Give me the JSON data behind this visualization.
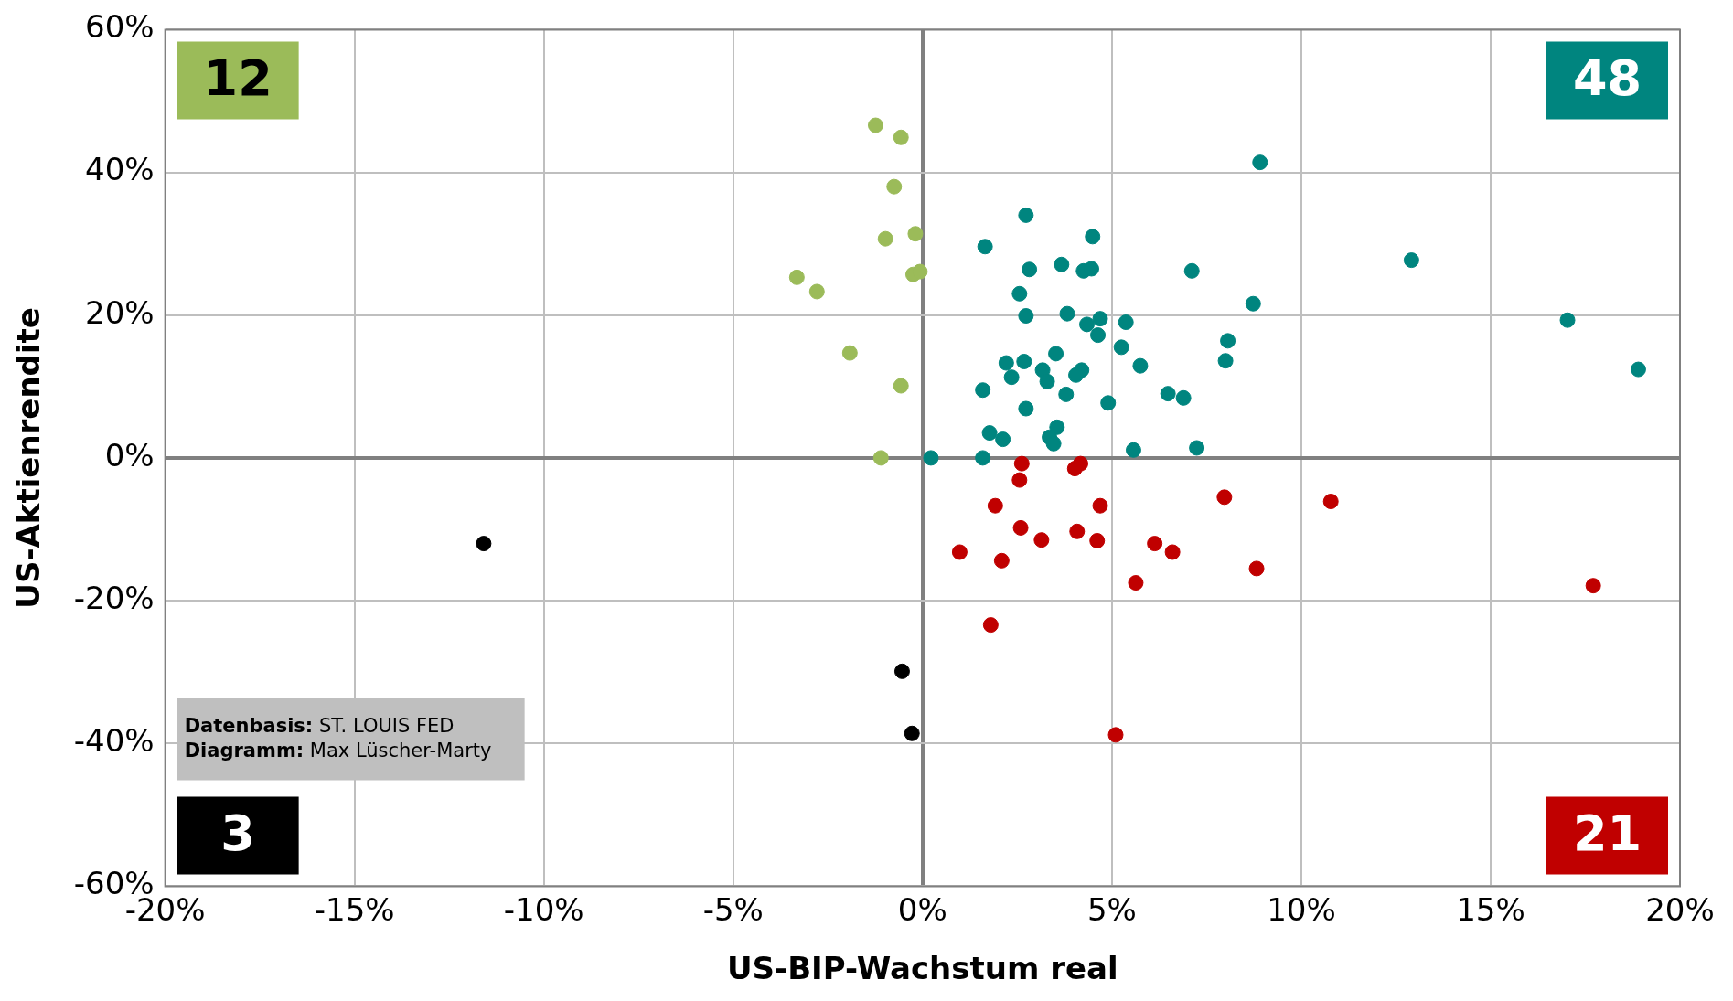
{
  "chart_data": {
    "type": "scatter",
    "xlabel": "US-BIP-Wachstum real",
    "ylabel": "US-Aktienrendite",
    "xlim": [
      -20,
      20
    ],
    "ylim": [
      -60,
      60
    ],
    "xticks": [
      {
        "value": -20,
        "label": "-20%"
      },
      {
        "value": -15,
        "label": "-15%"
      },
      {
        "value": -10,
        "label": "-10%"
      },
      {
        "value": -5,
        "label": "-5%"
      },
      {
        "value": 0,
        "label": "0%"
      },
      {
        "value": 5,
        "label": "5%"
      },
      {
        "value": 10,
        "label": "10%"
      },
      {
        "value": 15,
        "label": "15%"
      },
      {
        "value": 20,
        "label": "20%"
      }
    ],
    "yticks": [
      {
        "value": -60,
        "label": "-60%"
      },
      {
        "value": -40,
        "label": "-40%"
      },
      {
        "value": -20,
        "label": "-20%"
      },
      {
        "value": 0,
        "label": "0%"
      },
      {
        "value": 20,
        "label": "20%"
      },
      {
        "value": 40,
        "label": "40%"
      },
      {
        "value": 60,
        "label": "60%"
      }
    ],
    "grid": true,
    "legend": false,
    "marker": "circle",
    "series": [
      {
        "color": "#9bbb59",
        "x": [
          -1.24,
          -0.57,
          -0.75,
          -0.98,
          -0.19,
          -3.32,
          -2.79,
          -0.25,
          -0.07,
          -1.92,
          -0.57,
          -1.1
        ],
        "values": [
          46.6,
          44.9,
          38.0,
          30.7,
          31.4,
          25.3,
          23.3,
          25.7,
          26.1,
          14.7,
          10.1,
          0
        ]
      },
      {
        "color": "#00857f",
        "x": [
          8.91,
          2.73,
          4.49,
          12.91,
          1.65,
          3.67,
          2.82,
          4.25,
          4.46,
          7.11,
          8.73,
          2.56,
          3.82,
          2.73,
          4.69,
          4.34,
          5.37,
          4.63,
          17.03,
          8.06,
          5.25,
          3.52,
          8.0,
          18.9,
          2.68,
          2.21,
          5.75,
          3.17,
          4.2,
          2.35,
          3.29,
          4.05,
          1.59,
          3.79,
          6.48,
          6.89,
          4.9,
          2.73,
          3.55,
          1.77,
          2.12,
          3.35,
          3.46,
          5.57,
          7.24,
          0.22,
          1.59
        ],
        "values": [
          41.4,
          34.0,
          31.0,
          27.7,
          29.6,
          27.1,
          26.4,
          26.2,
          26.5,
          26.2,
          21.6,
          23.0,
          20.2,
          19.9,
          19.5,
          18.7,
          19.0,
          17.2,
          19.3,
          16.4,
          15.5,
          14.6,
          13.6,
          12.4,
          13.5,
          13.3,
          12.9,
          12.3,
          12.3,
          11.3,
          10.7,
          11.6,
          9.5,
          8.9,
          9.0,
          8.4,
          7.7,
          6.9,
          4.3,
          3.5,
          2.6,
          2.9,
          2.0,
          1.1,
          1.4,
          0,
          0
        ]
      },
      {
        "color": "#000000",
        "x": [
          -11.59,
          -0.54,
          -0.28
        ],
        "values": [
          -12.0,
          -29.9,
          -38.6
        ]
      },
      {
        "color": "#c00000",
        "x": [
          2.62,
          4.17,
          4.02,
          2.56,
          1.92,
          4.69,
          7.97,
          10.78,
          2.59,
          4.08,
          3.14,
          4.61,
          6.13,
          6.6,
          0.98,
          2.09,
          8.82,
          5.63,
          17.71,
          1.8,
          5.1
        ],
        "values": [
          -0.8,
          -0.8,
          -1.5,
          -3.1,
          -6.7,
          -6.7,
          -5.5,
          -6.1,
          -9.8,
          -10.3,
          -11.5,
          -11.6,
          -12.0,
          -13.2,
          -13.2,
          -14.4,
          -15.5,
          -17.5,
          -17.9,
          -23.4,
          -38.8
        ]
      }
    ],
    "annotations": [
      "12",
      "48",
      "3",
      "21",
      "Datenbasis: ST. LOUIS FED",
      "Diagramm: Max Lüscher-Marty"
    ]
  }
}
